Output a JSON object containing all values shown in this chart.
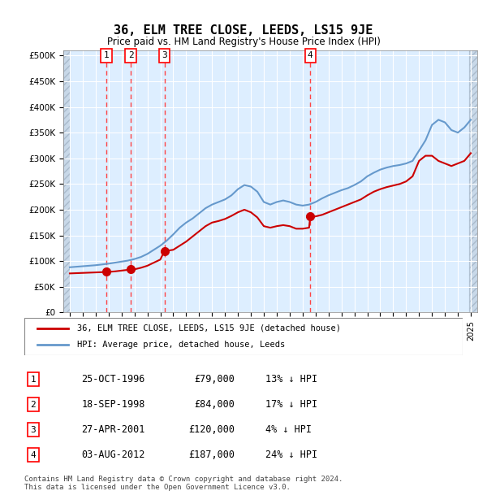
{
  "title": "36, ELM TREE CLOSE, LEEDS, LS15 9JE",
  "subtitle": "Price paid vs. HM Land Registry's House Price Index (HPI)",
  "footer": "Contains HM Land Registry data © Crown copyright and database right 2024.\nThis data is licensed under the Open Government Licence v3.0.",
  "legend_line1": "36, ELM TREE CLOSE, LEEDS, LS15 9JE (detached house)",
  "legend_line2": "HPI: Average price, detached house, Leeds",
  "hpi_color": "#6699cc",
  "price_color": "#cc0000",
  "sale_marker_color": "#cc0000",
  "vline_color": "#ff4444",
  "background_color": "#ddeeff",
  "hatch_color": "#bbccdd",
  "ylim": [
    0,
    510000
  ],
  "yticks": [
    0,
    50000,
    100000,
    150000,
    200000,
    250000,
    300000,
    350000,
    400000,
    450000,
    500000
  ],
  "xlim_start": 1993.5,
  "xlim_end": 2025.5,
  "sales": [
    {
      "label": "1",
      "date": "25-OCT-1996",
      "price": 79000,
      "year": 1996.82,
      "pct": "13%",
      "dir": "↓"
    },
    {
      "label": "2",
      "date": "18-SEP-1998",
      "price": 84000,
      "year": 1998.71,
      "pct": "17%",
      "dir": "↓"
    },
    {
      "label": "3",
      "date": "27-APR-2001",
      "price": 120000,
      "year": 2001.32,
      "pct": "4%",
      "dir": "↓"
    },
    {
      "label": "4",
      "date": "03-AUG-2012",
      "price": 187000,
      "year": 2012.59,
      "pct": "24%",
      "dir": "↓"
    }
  ],
  "hpi_years": [
    1994,
    1994.5,
    1995,
    1995.5,
    1996,
    1996.5,
    1997,
    1997.5,
    1998,
    1998.5,
    1999,
    1999.5,
    2000,
    2000.5,
    2001,
    2001.5,
    2002,
    2002.5,
    2003,
    2003.5,
    2004,
    2004.5,
    2005,
    2005.5,
    2006,
    2006.5,
    2007,
    2007.5,
    2008,
    2008.5,
    2009,
    2009.5,
    2010,
    2010.5,
    2011,
    2011.5,
    2012,
    2012.5,
    2013,
    2013.5,
    2014,
    2014.5,
    2015,
    2015.5,
    2016,
    2016.5,
    2017,
    2017.5,
    2018,
    2018.5,
    2019,
    2019.5,
    2020,
    2020.5,
    2021,
    2021.5,
    2022,
    2022.5,
    2023,
    2023.5,
    2024,
    2024.5,
    2025
  ],
  "hpi_values": [
    88000,
    89000,
    90000,
    91000,
    92000,
    93500,
    95000,
    97000,
    99000,
    101000,
    104000,
    108000,
    114000,
    122000,
    130000,
    140000,
    152000,
    165000,
    175000,
    183000,
    193000,
    203000,
    210000,
    215000,
    220000,
    228000,
    240000,
    248000,
    245000,
    235000,
    215000,
    210000,
    215000,
    218000,
    215000,
    210000,
    208000,
    210000,
    215000,
    222000,
    228000,
    233000,
    238000,
    242000,
    248000,
    255000,
    265000,
    272000,
    278000,
    282000,
    285000,
    287000,
    290000,
    295000,
    315000,
    335000,
    365000,
    375000,
    370000,
    355000,
    350000,
    360000,
    375000
  ],
  "price_years": [
    1994,
    1994.5,
    1995,
    1995.5,
    1996,
    1996.5,
    1996.82,
    1997,
    1997.5,
    1998,
    1998.5,
    1998.71,
    1999,
    1999.5,
    2000,
    2000.5,
    2001,
    2001.32,
    2001.5,
    2002,
    2002.5,
    2003,
    2003.5,
    2004,
    2004.5,
    2005,
    2005.5,
    2006,
    2006.5,
    2007,
    2007.5,
    2008,
    2008.5,
    2009,
    2009.5,
    2010,
    2010.5,
    2011,
    2011.5,
    2012,
    2012.5,
    2012.59,
    2013,
    2013.5,
    2014,
    2014.5,
    2015,
    2015.5,
    2016,
    2016.5,
    2017,
    2017.5,
    2018,
    2018.5,
    2019,
    2019.5,
    2020,
    2020.5,
    2021,
    2021.5,
    2022,
    2022.5,
    2023,
    2023.5,
    2024,
    2024.5,
    2025
  ],
  "price_values": [
    76000,
    76500,
    77000,
    77500,
    78000,
    78500,
    79000,
    79000,
    80000,
    81500,
    83000,
    84000,
    84000,
    87000,
    91000,
    97000,
    103000,
    120000,
    120000,
    122000,
    130000,
    138000,
    148000,
    158000,
    168000,
    175000,
    178000,
    182000,
    188000,
    195000,
    200000,
    195000,
    185000,
    168000,
    165000,
    168000,
    170000,
    168000,
    163000,
    163000,
    165000,
    187000,
    187000,
    190000,
    195000,
    200000,
    205000,
    210000,
    215000,
    220000,
    228000,
    235000,
    240000,
    244000,
    247000,
    250000,
    255000,
    265000,
    295000,
    305000,
    305000,
    295000,
    290000,
    285000,
    290000,
    295000,
    310000
  ]
}
